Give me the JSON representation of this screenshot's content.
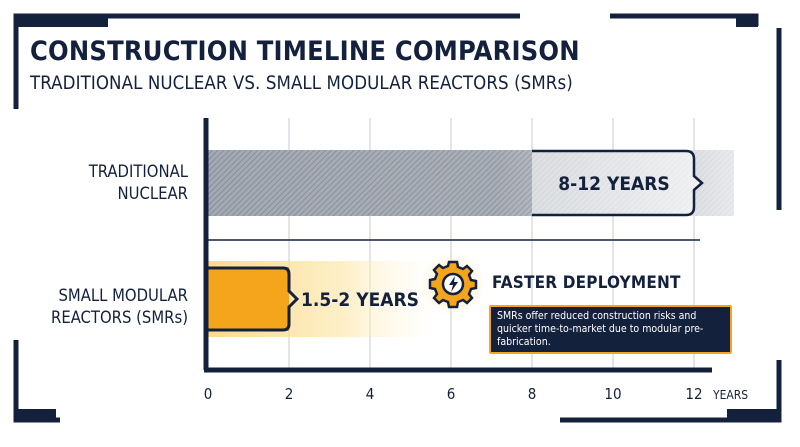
{
  "header": {
    "title": "CONSTRUCTION TIMELINE COMPARISON",
    "subtitle": "TRADITIONAL NUCLEAR VS. SMALL MODULAR REACTORS (SMRs)"
  },
  "callout": {
    "icon": "gear-lightning-icon",
    "title": "FASTER DEPLOYMENT",
    "text": "SMRs offer reduced construction risks and quicker time-to-market due to modular pre-fabrication."
  },
  "colors": {
    "navy": "#14213d",
    "gray_bar": "#8a919c",
    "gold": "#f4a51c",
    "gold_light": "#fde6a8"
  },
  "chart_data": {
    "type": "bar",
    "orientation": "horizontal",
    "categories": [
      "TRADITIONAL\nNUCLEAR",
      "SMALL MODULAR\nREACTORS (SMRs)"
    ],
    "ranges": [
      [
        8,
        12
      ],
      [
        1.5,
        2
      ]
    ],
    "values": [
      12,
      2
    ],
    "data_labels": [
      "8-12 YEARS",
      "1.5-2 YEARS"
    ],
    "xlabel": "YEARS",
    "xlim": [
      0,
      12
    ],
    "xticks": [
      0,
      2,
      4,
      6,
      8,
      10,
      12
    ],
    "grid": true,
    "legend": false
  }
}
